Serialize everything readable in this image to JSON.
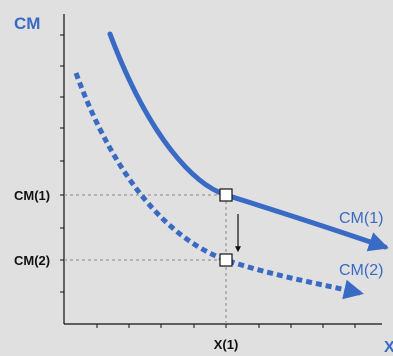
{
  "colors": {
    "background": "#e0e0e0",
    "curve": "#3a6bc4",
    "axis_title": "#3a6bc4",
    "axis": "#111111",
    "tick_label": "#111111",
    "guide_line": "#888888"
  },
  "axes": {
    "y_title": "CM",
    "x_title": "X",
    "y_tick_labels": [
      "CM(1)",
      "CM(2)"
    ],
    "x_tick_labels": [
      "X(1)"
    ]
  },
  "curves": {
    "upper_label": "CM(1)",
    "lower_label": "CM(2)",
    "upper_style": "solid",
    "lower_style": "dotted"
  },
  "annotation": {
    "arrow_direction": "down"
  }
}
